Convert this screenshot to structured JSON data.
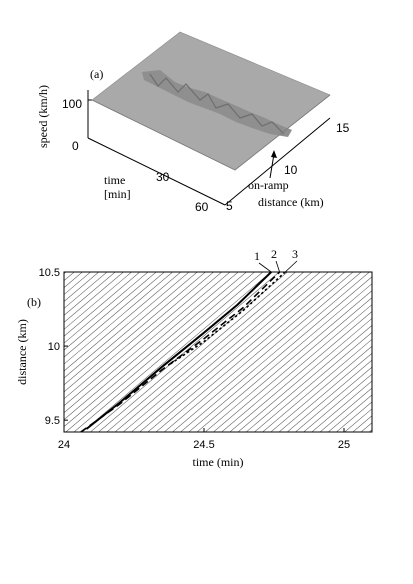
{
  "chart_data": [
    {
      "type": "surface",
      "panel_label": "(a)",
      "zlabel": "speed (km/h)",
      "xlabel": "time\n[min]",
      "ylabel": "distance (km)",
      "annotation": "on-ramp",
      "annotation_distance": 9.8,
      "z_ticks": [
        0,
        100
      ],
      "time_ticks": [
        30,
        60
      ],
      "distance_ticks": [
        5,
        10,
        15
      ],
      "surface_level": 100,
      "surface_color": "#a9a9a9"
    },
    {
      "type": "line",
      "panel_label": "(b)",
      "xlabel": "time (min)",
      "ylabel": "distance (km)",
      "xlim": [
        24,
        25.1
      ],
      "ylim": [
        9.42,
        10.5
      ],
      "x_ticks": [
        "24",
        "24.5",
        "25"
      ],
      "x_tick_values": [
        24,
        24.5,
        25
      ],
      "y_ticks": [
        "9.5",
        "10",
        "10.5"
      ],
      "y_tick_values": [
        9.5,
        10,
        10.5
      ],
      "series": [
        {
          "name": "1",
          "style": "solid",
          "x": [
            24.08,
            24.2,
            24.35,
            24.5,
            24.62,
            24.74
          ],
          "y": [
            9.44,
            9.62,
            9.86,
            10.09,
            10.28,
            10.5
          ]
        },
        {
          "name": "2",
          "style": "dashed",
          "x": [
            24.06,
            24.2,
            24.35,
            24.5,
            24.64,
            24.77
          ],
          "y": [
            9.42,
            9.61,
            9.84,
            10.05,
            10.26,
            10.5
          ]
        },
        {
          "name": "3",
          "style": "dotted",
          "x": [
            24.38,
            24.5,
            24.64,
            24.79
          ],
          "y": [
            9.88,
            10.03,
            10.24,
            10.5
          ]
        }
      ],
      "background_trajectories": "hatched"
    }
  ]
}
